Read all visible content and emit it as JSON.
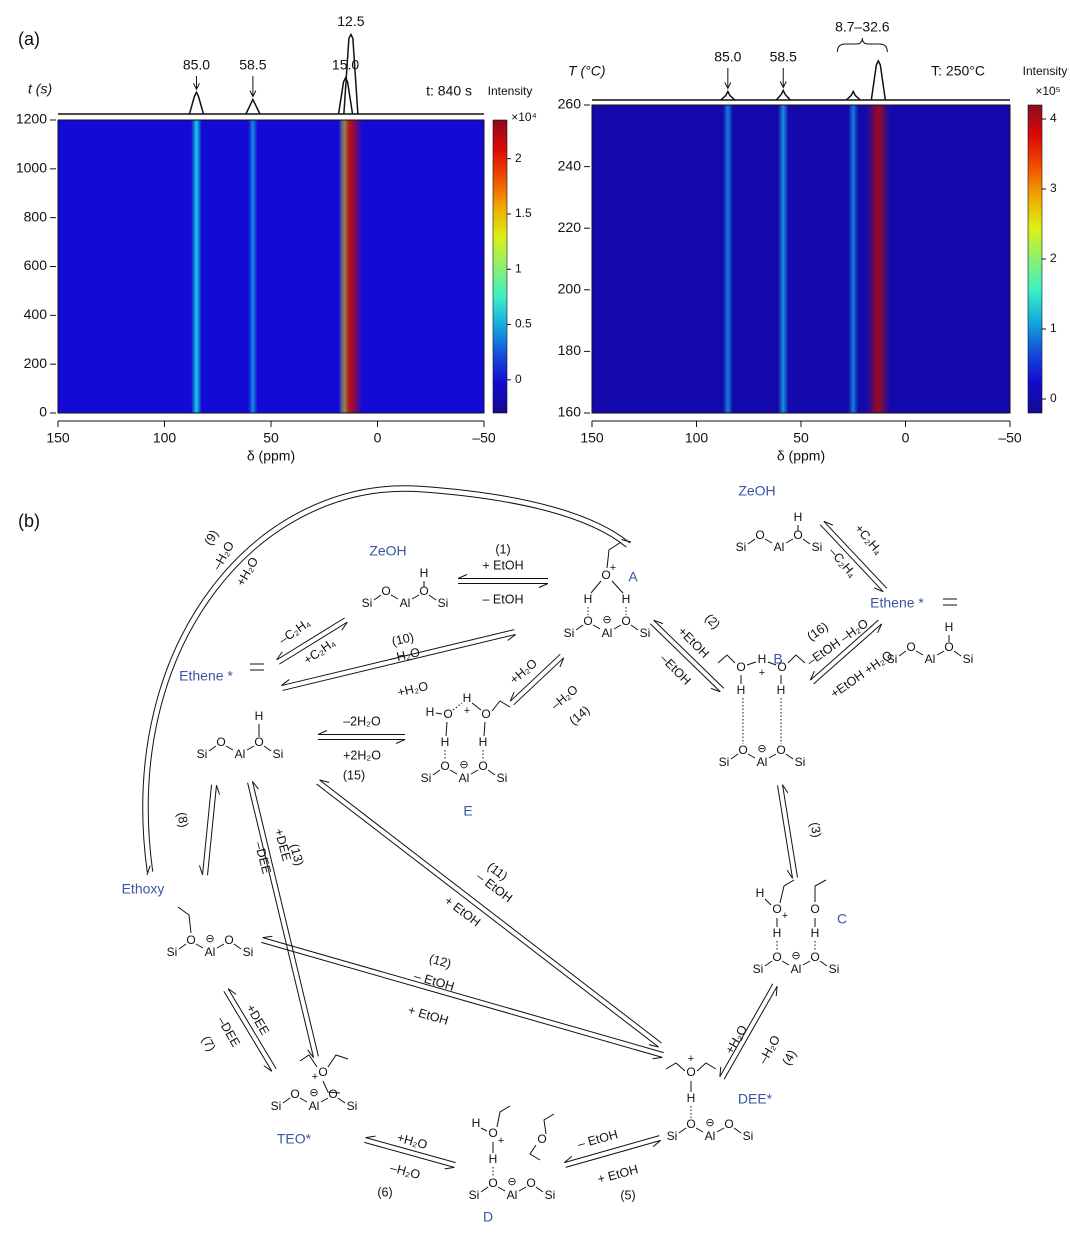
{
  "panel_labels": [
    "(a)",
    "(b)"
  ],
  "chart_data": [
    {
      "type": "heatmap",
      "y_label": "t (s)",
      "annotation": "t: 840 s",
      "x_label": "δ (ppm)",
      "colorbar_label": "Intensity",
      "colorbar_multiplier": "×10⁴",
      "xlim": [
        150,
        -50
      ],
      "xticks": [
        150,
        100,
        50,
        0,
        {
          "value": -50,
          "label": "–50"
        }
      ],
      "ylim": [
        0,
        1200
      ],
      "yticks": [
        0,
        200,
        400,
        600,
        800,
        1000,
        1200
      ],
      "clim": [
        -0.3,
        2.35
      ],
      "cticks": [
        0,
        0.5,
        1,
        1.5,
        2
      ],
      "peaks": [
        {
          "value": 85,
          "label": "85.0",
          "intensity": 0.6
        },
        {
          "value": 58.5,
          "label": "58.5",
          "intensity": 0.4
        },
        {
          "value": 15,
          "label": "15.0",
          "intensity": 1.0
        },
        {
          "value": 12.5,
          "label": "12.5",
          "intensity": 2.2
        }
      ]
    },
    {
      "type": "heatmap",
      "y_label": "T (°C)",
      "annotation": "T: 250°C",
      "x_label": "δ (ppm)",
      "colorbar_label": "Intensity",
      "colorbar_multiplier": "×10⁵",
      "xlim": [
        150,
        -50
      ],
      "xticks": [
        150,
        100,
        50,
        0,
        {
          "value": -50,
          "label": "–50"
        }
      ],
      "ylim": [
        160,
        260
      ],
      "yticks": [
        160,
        180,
        200,
        220,
        240,
        260
      ],
      "clim": [
        -0.2,
        4.2
      ],
      "cticks": [
        0,
        1,
        2,
        3,
        4
      ],
      "peaks": [
        {
          "value": 85,
          "label": "85.0",
          "intensity": 0.9
        },
        {
          "value": 58.5,
          "label": "58.5",
          "intensity": 1.0
        }
      ],
      "bands": [
        {
          "value": 25,
          "intensity": 0.9
        },
        {
          "value": 13,
          "intensity": 4.1
        }
      ],
      "range_label": {
        "from": 8.7,
        "to": 32.6,
        "label": "8.7–32.6"
      }
    }
  ],
  "scheme": {
    "atoms": [
      "Si",
      "O",
      "Al",
      "H"
    ],
    "charges": [
      "+",
      "⊖"
    ],
    "species": [
      "ZeOH",
      "A",
      "ZeOH",
      "Ethene *",
      "B",
      "E",
      "Ethene *",
      "Ethoxy",
      "C",
      "TEO*",
      "D",
      "DEE*"
    ],
    "reactions": [
      {
        "number": "(1)",
        "labels": [
          "+ EtOH",
          "– EtOH"
        ]
      },
      {
        "number": "(2)",
        "labels": [
          "+EtOH",
          "–EtOH"
        ]
      },
      {
        "number": "(3)"
      },
      {
        "number": "(4)",
        "labels": [
          "+H₂O",
          "–H₂O"
        ]
      },
      {
        "number": "(5)",
        "labels": [
          "– EtOH",
          "+ EtOH"
        ]
      },
      {
        "number": "(6)",
        "labels": [
          "+H₂O",
          "–H₂O"
        ]
      },
      {
        "number": "(7)",
        "labels": [
          "+DEE",
          "–DEE"
        ]
      },
      {
        "number": "(8)"
      },
      {
        "number": "(9)",
        "labels": [
          "–H₂O",
          "+H₂O"
        ]
      },
      {
        "number": "(10)",
        "labels": [
          "–H₂O",
          "+H₂O"
        ]
      },
      {
        "number": "(11)",
        "labels": [
          "– EtOH",
          "+ EtOH"
        ]
      },
      {
        "number": "(12)",
        "labels": [
          "– EtOH",
          "+ EtOH"
        ]
      },
      {
        "number": "(13)",
        "labels": [
          "+DEE",
          "–DEE"
        ]
      },
      {
        "number": "(14)",
        "labels": [
          "+H₂O",
          "–H₂O"
        ]
      },
      {
        "number": "(15)",
        "labels": [
          "–2H₂O",
          "+2H₂O"
        ]
      },
      {
        "number": "(16)",
        "labels": [
          "–EtOH –H₂O",
          "+EtOH +H₂O"
        ]
      },
      {
        "labels": [
          "+C₂H₄",
          "–C₂H₄"
        ]
      },
      {
        "labels": [
          "–C₂H₄",
          "+C₂H₄"
        ]
      }
    ]
  }
}
